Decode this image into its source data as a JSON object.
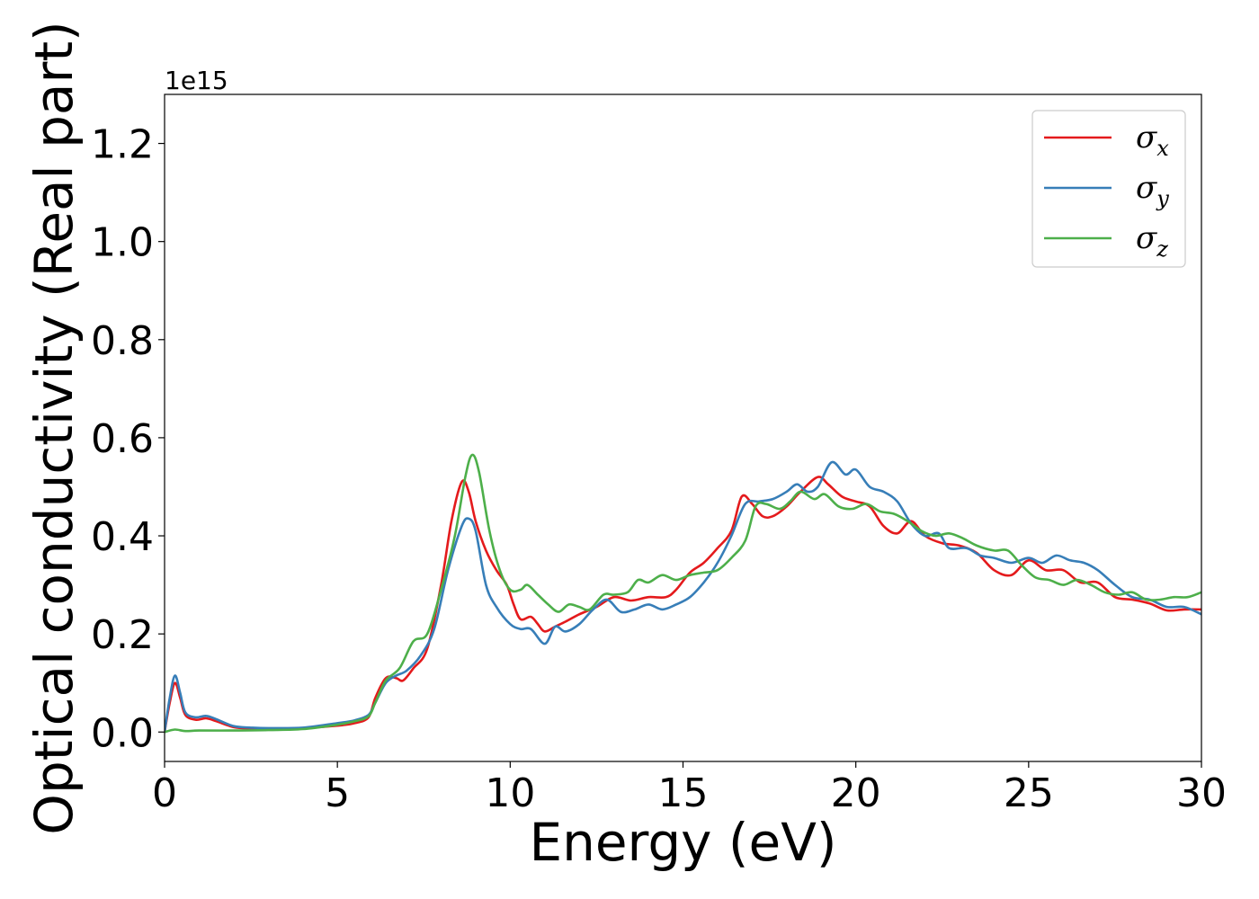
{
  "chart_data": {
    "type": "line",
    "title": "",
    "xlabel": "Energy (eV)",
    "ylabel": "Optical conductivity (Real part)",
    "y_offset_label": "1e15",
    "xlim": [
      0,
      30
    ],
    "ylim": [
      -0.06,
      1.3
    ],
    "x_ticks": [
      0,
      5,
      10,
      15,
      20,
      25,
      30
    ],
    "x_tick_labels": [
      "0",
      "5",
      "10",
      "15",
      "20",
      "25",
      "30"
    ],
    "y_ticks": [
      0.0,
      0.2,
      0.4,
      0.6,
      0.8,
      1.0,
      1.2
    ],
    "y_tick_labels": [
      "0.0",
      "0.2",
      "0.4",
      "0.6",
      "0.8",
      "1.0",
      "1.2"
    ],
    "grid": false,
    "legend_position": "top-right",
    "series": [
      {
        "name": "σ",
        "subscript": "x",
        "color": "#e41a1c",
        "points": [
          [
            0,
            0
          ],
          [
            0.15,
            0.06
          ],
          [
            0.3,
            0.1
          ],
          [
            0.45,
            0.07
          ],
          [
            0.6,
            0.035
          ],
          [
            0.9,
            0.025
          ],
          [
            1.2,
            0.028
          ],
          [
            1.5,
            0.022
          ],
          [
            2,
            0.01
          ],
          [
            2.5,
            0.007
          ],
          [
            3,
            0.006
          ],
          [
            4,
            0.008
          ],
          [
            5,
            0.013
          ],
          [
            5.5,
            0.018
          ],
          [
            5.9,
            0.03
          ],
          [
            6.1,
            0.07
          ],
          [
            6.4,
            0.11
          ],
          [
            6.7,
            0.11
          ],
          [
            6.9,
            0.105
          ],
          [
            7.2,
            0.13
          ],
          [
            7.6,
            0.17
          ],
          [
            8,
            0.3
          ],
          [
            8.3,
            0.43
          ],
          [
            8.6,
            0.51
          ],
          [
            8.8,
            0.49
          ],
          [
            9,
            0.43
          ],
          [
            9.3,
            0.37
          ],
          [
            9.6,
            0.33
          ],
          [
            9.9,
            0.3
          ],
          [
            10.1,
            0.26
          ],
          [
            10.3,
            0.23
          ],
          [
            10.6,
            0.235
          ],
          [
            10.8,
            0.22
          ],
          [
            11,
            0.205
          ],
          [
            11.3,
            0.215
          ],
          [
            11.6,
            0.225
          ],
          [
            12,
            0.24
          ],
          [
            12.5,
            0.255
          ],
          [
            13,
            0.275
          ],
          [
            13.5,
            0.268
          ],
          [
            14,
            0.275
          ],
          [
            14.5,
            0.275
          ],
          [
            14.8,
            0.29
          ],
          [
            15.2,
            0.325
          ],
          [
            15.6,
            0.345
          ],
          [
            16,
            0.375
          ],
          [
            16.4,
            0.41
          ],
          [
            16.7,
            0.48
          ],
          [
            17,
            0.465
          ],
          [
            17.3,
            0.44
          ],
          [
            17.6,
            0.44
          ],
          [
            18,
            0.46
          ],
          [
            18.4,
            0.49
          ],
          [
            18.9,
            0.52
          ],
          [
            19.2,
            0.505
          ],
          [
            19.6,
            0.48
          ],
          [
            20,
            0.47
          ],
          [
            20.4,
            0.46
          ],
          [
            20.8,
            0.42
          ],
          [
            21.2,
            0.405
          ],
          [
            21.6,
            0.43
          ],
          [
            22,
            0.4
          ],
          [
            22.5,
            0.385
          ],
          [
            23,
            0.38
          ],
          [
            23.5,
            0.365
          ],
          [
            24,
            0.33
          ],
          [
            24.5,
            0.32
          ],
          [
            25,
            0.35
          ],
          [
            25.5,
            0.33
          ],
          [
            26,
            0.33
          ],
          [
            26.5,
            0.305
          ],
          [
            27,
            0.305
          ],
          [
            27.5,
            0.275
          ],
          [
            28,
            0.27
          ],
          [
            28.5,
            0.262
          ],
          [
            29,
            0.248
          ],
          [
            29.5,
            0.25
          ],
          [
            30,
            0.25
          ]
        ]
      },
      {
        "name": "σ",
        "subscript": "y",
        "color": "#377eb8",
        "points": [
          [
            0,
            0
          ],
          [
            0.15,
            0.07
          ],
          [
            0.3,
            0.115
          ],
          [
            0.45,
            0.08
          ],
          [
            0.6,
            0.04
          ],
          [
            0.9,
            0.03
          ],
          [
            1.2,
            0.033
          ],
          [
            1.5,
            0.026
          ],
          [
            2,
            0.012
          ],
          [
            2.5,
            0.009
          ],
          [
            3,
            0.008
          ],
          [
            4,
            0.009
          ],
          [
            5,
            0.018
          ],
          [
            5.5,
            0.024
          ],
          [
            5.9,
            0.035
          ],
          [
            6.1,
            0.06
          ],
          [
            6.4,
            0.1
          ],
          [
            6.7,
            0.115
          ],
          [
            7,
            0.125
          ],
          [
            7.4,
            0.155
          ],
          [
            7.8,
            0.21
          ],
          [
            8.2,
            0.33
          ],
          [
            8.6,
            0.42
          ],
          [
            8.8,
            0.435
          ],
          [
            9,
            0.41
          ],
          [
            9.3,
            0.3
          ],
          [
            9.6,
            0.255
          ],
          [
            10,
            0.22
          ],
          [
            10.3,
            0.21
          ],
          [
            10.6,
            0.21
          ],
          [
            11,
            0.18
          ],
          [
            11.3,
            0.215
          ],
          [
            11.6,
            0.205
          ],
          [
            12,
            0.22
          ],
          [
            12.4,
            0.25
          ],
          [
            12.8,
            0.27
          ],
          [
            13.2,
            0.245
          ],
          [
            13.6,
            0.25
          ],
          [
            14,
            0.26
          ],
          [
            14.4,
            0.25
          ],
          [
            14.8,
            0.26
          ],
          [
            15.2,
            0.275
          ],
          [
            15.6,
            0.305
          ],
          [
            16,
            0.345
          ],
          [
            16.4,
            0.4
          ],
          [
            16.8,
            0.465
          ],
          [
            17.2,
            0.47
          ],
          [
            17.6,
            0.475
          ],
          [
            18,
            0.49
          ],
          [
            18.3,
            0.505
          ],
          [
            18.6,
            0.49
          ],
          [
            18.9,
            0.5
          ],
          [
            19.3,
            0.55
          ],
          [
            19.7,
            0.525
          ],
          [
            20,
            0.535
          ],
          [
            20.4,
            0.5
          ],
          [
            20.8,
            0.49
          ],
          [
            21.2,
            0.47
          ],
          [
            21.6,
            0.425
          ],
          [
            22,
            0.4
          ],
          [
            22.4,
            0.405
          ],
          [
            22.7,
            0.375
          ],
          [
            23.2,
            0.375
          ],
          [
            23.6,
            0.36
          ],
          [
            24,
            0.355
          ],
          [
            24.5,
            0.345
          ],
          [
            25,
            0.355
          ],
          [
            25.4,
            0.345
          ],
          [
            25.8,
            0.36
          ],
          [
            26.2,
            0.35
          ],
          [
            26.6,
            0.345
          ],
          [
            27,
            0.33
          ],
          [
            27.5,
            0.3
          ],
          [
            28,
            0.275
          ],
          [
            28.5,
            0.27
          ],
          [
            29,
            0.255
          ],
          [
            29.5,
            0.255
          ],
          [
            30,
            0.24
          ]
        ]
      },
      {
        "name": "σ",
        "subscript": "z",
        "color": "#4daf4a",
        "points": [
          [
            0,
            0
          ],
          [
            0.3,
            0.005
          ],
          [
            0.6,
            0.002
          ],
          [
            1,
            0.003
          ],
          [
            2,
            0.003
          ],
          [
            3,
            0.004
          ],
          [
            4,
            0.006
          ],
          [
            5,
            0.015
          ],
          [
            5.5,
            0.022
          ],
          [
            5.9,
            0.032
          ],
          [
            6.1,
            0.06
          ],
          [
            6.4,
            0.105
          ],
          [
            6.8,
            0.13
          ],
          [
            7.2,
            0.185
          ],
          [
            7.6,
            0.2
          ],
          [
            8,
            0.29
          ],
          [
            8.4,
            0.4
          ],
          [
            8.7,
            0.52
          ],
          [
            8.9,
            0.565
          ],
          [
            9.1,
            0.53
          ],
          [
            9.4,
            0.41
          ],
          [
            9.7,
            0.33
          ],
          [
            10,
            0.29
          ],
          [
            10.3,
            0.29
          ],
          [
            10.5,
            0.3
          ],
          [
            10.8,
            0.28
          ],
          [
            11.1,
            0.26
          ],
          [
            11.4,
            0.245
          ],
          [
            11.7,
            0.26
          ],
          [
            12,
            0.255
          ],
          [
            12.3,
            0.25
          ],
          [
            12.7,
            0.28
          ],
          [
            13,
            0.28
          ],
          [
            13.4,
            0.285
          ],
          [
            13.7,
            0.31
          ],
          [
            14,
            0.305
          ],
          [
            14.4,
            0.32
          ],
          [
            14.8,
            0.31
          ],
          [
            15.2,
            0.32
          ],
          [
            15.6,
            0.325
          ],
          [
            16,
            0.33
          ],
          [
            16.4,
            0.355
          ],
          [
            16.8,
            0.39
          ],
          [
            17.1,
            0.46
          ],
          [
            17.4,
            0.465
          ],
          [
            17.8,
            0.455
          ],
          [
            18.1,
            0.47
          ],
          [
            18.4,
            0.49
          ],
          [
            18.8,
            0.475
          ],
          [
            19.1,
            0.485
          ],
          [
            19.5,
            0.46
          ],
          [
            19.9,
            0.455
          ],
          [
            20.3,
            0.465
          ],
          [
            20.7,
            0.45
          ],
          [
            21.1,
            0.445
          ],
          [
            21.5,
            0.43
          ],
          [
            21.9,
            0.41
          ],
          [
            22.3,
            0.4
          ],
          [
            22.7,
            0.405
          ],
          [
            23.1,
            0.395
          ],
          [
            23.5,
            0.38
          ],
          [
            24,
            0.37
          ],
          [
            24.4,
            0.37
          ],
          [
            24.8,
            0.34
          ],
          [
            25.2,
            0.315
          ],
          [
            25.6,
            0.31
          ],
          [
            26,
            0.3
          ],
          [
            26.4,
            0.31
          ],
          [
            26.8,
            0.3
          ],
          [
            27.2,
            0.285
          ],
          [
            27.6,
            0.28
          ],
          [
            28,
            0.285
          ],
          [
            28.4,
            0.27
          ],
          [
            28.8,
            0.27
          ],
          [
            29.2,
            0.275
          ],
          [
            29.6,
            0.275
          ],
          [
            30,
            0.285
          ]
        ]
      }
    ]
  }
}
